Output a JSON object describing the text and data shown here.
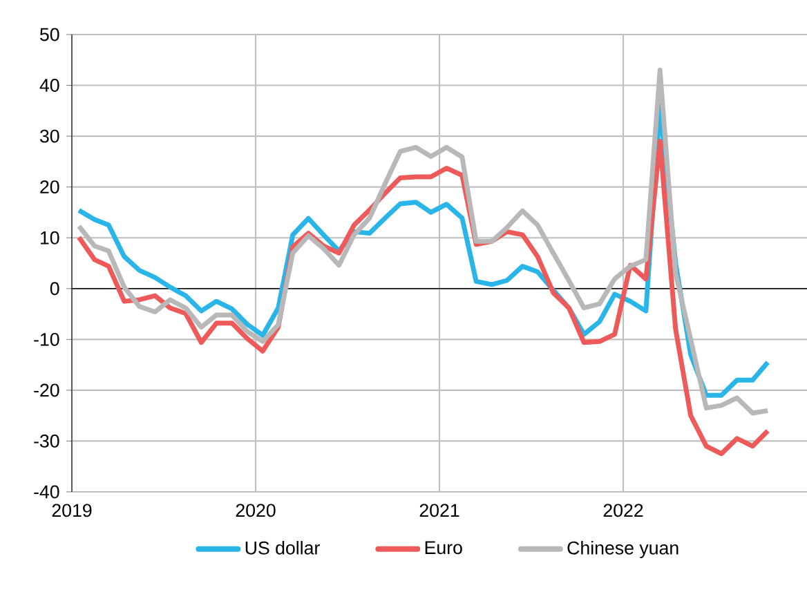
{
  "chart_data": {
    "type": "line",
    "x": [
      "2019-01-15",
      "2019-02-15",
      "2019-03-15",
      "2019-04-15",
      "2019-05-15",
      "2019-06-15",
      "2019-07-15",
      "2019-08-15",
      "2019-09-15",
      "2019-10-15",
      "2019-11-15",
      "2019-12-15",
      "2020-01-15",
      "2020-02-15",
      "2020-03-15",
      "2020-04-15",
      "2020-05-15",
      "2020-06-15",
      "2020-07-15",
      "2020-08-15",
      "2020-09-15",
      "2020-10-15",
      "2020-11-15",
      "2020-12-15",
      "2021-01-15",
      "2021-02-15",
      "2021-03-15",
      "2021-04-15",
      "2021-05-15",
      "2021-06-15",
      "2021-07-15",
      "2021-08-15",
      "2021-09-15",
      "2021-10-15",
      "2021-11-15",
      "2021-12-15",
      "2022-01-15",
      "2022-02-15",
      "2022-03-15",
      "2022-04-15",
      "2022-05-15",
      "2022-06-15",
      "2022-07-15",
      "2022-08-15",
      "2022-09-15",
      "2022-10-15"
    ],
    "series": [
      {
        "name": "US dollar",
        "color": "#29b5e8",
        "values": [
          15.4,
          13.6,
          12.5,
          6.3,
          3.6,
          2.2,
          0.3,
          -1.4,
          -4.4,
          -2.5,
          -4,
          -7,
          -9.2,
          -3.8,
          10.6,
          13.8,
          10.6,
          7.4,
          11.2,
          10.9,
          13.9,
          16.7,
          17,
          15,
          16.6,
          13.9,
          1.4,
          0.8,
          1.6,
          4.4,
          3.3,
          -0.3,
          -3.8,
          -9,
          -6.5,
          -1.1,
          -2.5,
          -4.4,
          36,
          5,
          -13,
          -21,
          -21,
          -18,
          -18,
          -14.5
        ]
      },
      {
        "name": "Euro",
        "color": "#ee5a5a",
        "values": [
          10.1,
          5.7,
          4.4,
          -2.5,
          -2.2,
          -1.4,
          -3.8,
          -4.9,
          -10.6,
          -6.8,
          -6.8,
          -9.8,
          -12.3,
          -7.6,
          8.2,
          10.9,
          8.4,
          7,
          12.5,
          15.5,
          18.8,
          21.8,
          22,
          22,
          23.7,
          22.3,
          8.7,
          9.3,
          11.2,
          10.6,
          6.3,
          -0.8,
          -3.8,
          -10.6,
          -10.4,
          -9,
          4.6,
          1.9,
          29,
          -8,
          -25,
          -31,
          -32.5,
          -29.5,
          -31,
          -28
        ]
      },
      {
        "name": "Chinese yuan",
        "color": "#b8b8b8",
        "values": [
          12.3,
          8.4,
          7.4,
          0.3,
          -3.5,
          -4.6,
          -2.2,
          -3.8,
          -7.6,
          -5.2,
          -5.2,
          -8.4,
          -10.4,
          -7.1,
          7,
          10.4,
          7.9,
          4.6,
          10.6,
          13.9,
          20.7,
          27,
          27.8,
          26,
          27.8,
          25.9,
          9.3,
          9.3,
          12,
          15.3,
          12.5,
          7,
          1.6,
          -3.8,
          -3,
          1.9,
          4.4,
          5.7,
          43,
          3,
          -10,
          -23.5,
          -23,
          -21.5,
          -24.5,
          -24
        ]
      }
    ],
    "xlim": [
      "2019",
      "2023"
    ],
    "xticks": [
      "2019",
      "2020",
      "2021",
      "2022"
    ],
    "ylim": [
      -40,
      50
    ],
    "yticks": [
      -40,
      -30,
      -20,
      -10,
      0,
      10,
      20,
      30,
      40,
      50
    ],
    "grid": true,
    "legend": "bottom",
    "marker": "none",
    "line_style": "solid"
  }
}
